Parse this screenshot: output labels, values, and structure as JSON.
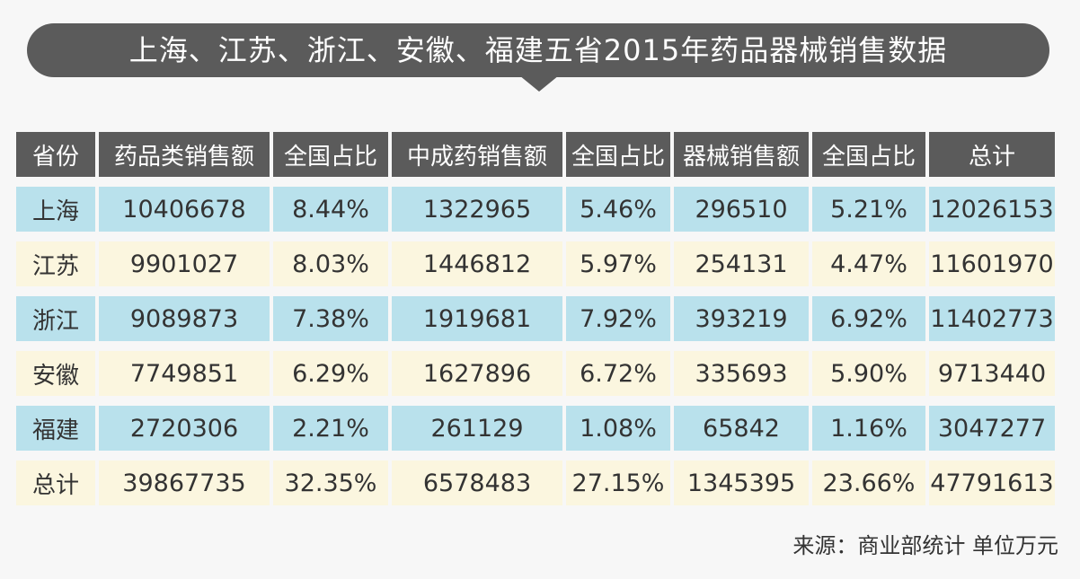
{
  "title": "上海、江苏、浙江、安徽、福建五省2015年药品器械销售数据",
  "colors": {
    "header_bg": "#5b5b5b",
    "row_blue": "#b9e1ec",
    "row_cream": "#fbf6df"
  },
  "chart_data": {
    "type": "table",
    "title": "上海、江苏、浙江、安徽、福建五省2015年药品器械销售数据",
    "columns": [
      "省份",
      "药品类销售额",
      "全国占比",
      "中成药销售额",
      "全国占比",
      "器械销售额",
      "全国占比",
      "总计"
    ],
    "rows": [
      [
        "上海",
        "10406678",
        "8.44%",
        "1322965",
        "5.46%",
        "296510",
        "5.21%",
        "12026153"
      ],
      [
        "江苏",
        "9901027",
        "8.03%",
        "1446812",
        "5.97%",
        "254131",
        "4.47%",
        "11601970"
      ],
      [
        "浙江",
        "9089873",
        "7.38%",
        "1919681",
        "7.92%",
        "393219",
        "6.92%",
        "11402773"
      ],
      [
        "安徽",
        "7749851",
        "6.29%",
        "1627896",
        "6.72%",
        "335693",
        "5.90%",
        "9713440"
      ],
      [
        "福建",
        "2720306",
        "2.21%",
        "261129",
        "1.08%",
        "65842",
        "1.16%",
        "3047277"
      ],
      [
        "总计",
        "39867735",
        "32.35%",
        "6578483",
        "27.15%",
        "1345395",
        "23.66%",
        "47791613"
      ]
    ]
  },
  "source": "来源：商业部统计 单位万元"
}
